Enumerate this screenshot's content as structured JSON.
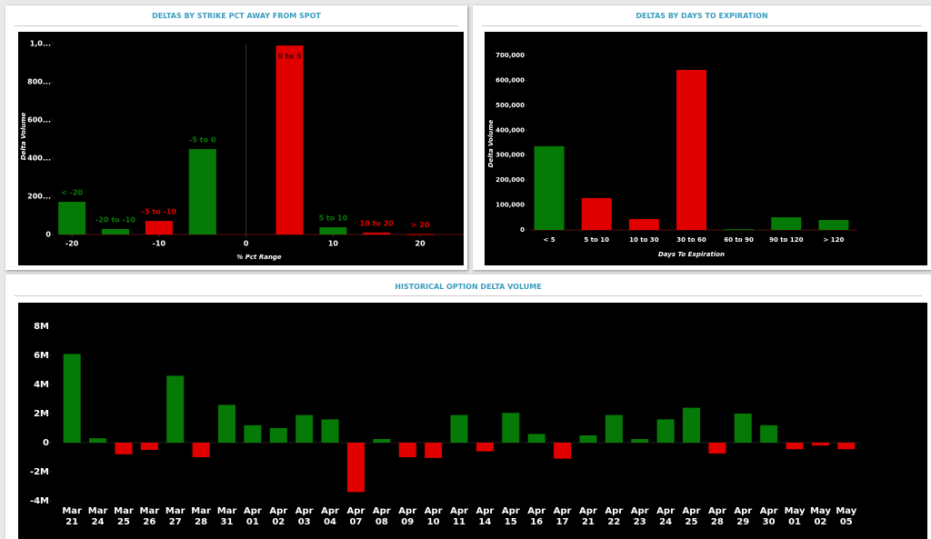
{
  "chart_data": [
    {
      "type": "bar",
      "title": "DELTAS BY STRIKE PCT AWAY FROM SPOT",
      "x_label": "% Pct Range",
      "y_label": "Delta Volume",
      "x": [
        -20,
        -15,
        -10,
        -5,
        5,
        10,
        15,
        20
      ],
      "bar_labels": [
        "< -20",
        "-20 to -10",
        "-5 to -10",
        "-5 to 0",
        "0 to 5",
        "5 to 10",
        "10 to 20",
        "> 20"
      ],
      "values": [
        171,
        29,
        71,
        448,
        990,
        38,
        10,
        2
      ],
      "colors": [
        "#067a06",
        "#067a06",
        "#e00000",
        "#067a06",
        "#e00000",
        "#067a06",
        "#e00000",
        "#e00000"
      ],
      "xlim": [
        -22,
        25
      ],
      "xticks": [
        -20,
        -10,
        0,
        10,
        20
      ],
      "ylim": [
        0,
        1000
      ],
      "yticks": [
        0,
        {
          "value": 200,
          "label": "200..."
        },
        {
          "value": 400,
          "label": "400..."
        },
        {
          "value": 600,
          "label": "600..."
        },
        {
          "value": 800,
          "label": "800..."
        },
        {
          "value": 1000,
          "label": "1,0..."
        }
      ]
    },
    {
      "type": "bar",
      "title": "DELTAS BY DAYS TO EXPIRATION",
      "x_label": "Days To Expiration",
      "y_label": "Delta Volume",
      "categories": [
        "< 5",
        "5 to 10",
        "10 to 30",
        "30 to 60",
        "60 to 90",
        "90 to 120",
        "> 120"
      ],
      "values": [
        336000,
        128000,
        44000,
        642000,
        3000,
        51000,
        40000
      ],
      "colors": [
        "#067a06",
        "#e00000",
        "#e00000",
        "#e00000",
        "#067a06",
        "#067a06",
        "#067a06"
      ],
      "ylim": [
        0,
        700000
      ],
      "yticks": [
        0,
        {
          "value": 100000,
          "label": "100,000"
        },
        {
          "value": 200000,
          "label": "200,000"
        },
        {
          "value": 300000,
          "label": "300,000"
        },
        {
          "value": 400000,
          "label": "400,000"
        },
        {
          "value": 500000,
          "label": "500,000"
        },
        {
          "value": 600000,
          "label": "600,000"
        },
        {
          "value": 700000,
          "label": "700,000"
        }
      ]
    },
    {
      "type": "bar",
      "title": "HISTORICAL OPTION DELTA VOLUME",
      "categories": [
        "Mar 21",
        "Mar 24",
        "Mar 25",
        "Mar 26",
        "Mar 27",
        "Mar 28",
        "Mar 31",
        "Apr 01",
        "Apr 02",
        "Apr 03",
        "Apr 04",
        "Apr 07",
        "Apr 08",
        "Apr 09",
        "Apr 10",
        "Apr 11",
        "Apr 14",
        "Apr 15",
        "Apr 16",
        "Apr 17",
        "Apr 21",
        "Apr 22",
        "Apr 23",
        "Apr 24",
        "Apr 25",
        "Apr 28",
        "Apr 29",
        "Apr 30",
        "May 01",
        "May 02",
        "May 05"
      ],
      "values": [
        6.1,
        0.3,
        -0.8,
        -0.5,
        4.6,
        -1.0,
        2.6,
        1.2,
        1.0,
        1.9,
        1.6,
        -3.4,
        0.25,
        -1.0,
        -1.05,
        1.9,
        -0.6,
        2.05,
        0.6,
        -1.1,
        0.5,
        1.9,
        0.25,
        1.6,
        2.4,
        -0.75,
        2.0,
        1.2,
        -0.45,
        -0.2,
        -0.45
      ],
      "positive_color": "#067a06",
      "negative_color": "#e00000",
      "ylim": [
        -4,
        8
      ],
      "yticks": [
        {
          "value": -4,
          "label": "-4M"
        },
        {
          "value": -2,
          "label": "-2M"
        },
        0,
        {
          "value": 2,
          "label": "2M"
        },
        {
          "value": 4,
          "label": "4M"
        },
        {
          "value": 6,
          "label": "6M"
        },
        {
          "value": 8,
          "label": "8M"
        }
      ]
    }
  ]
}
